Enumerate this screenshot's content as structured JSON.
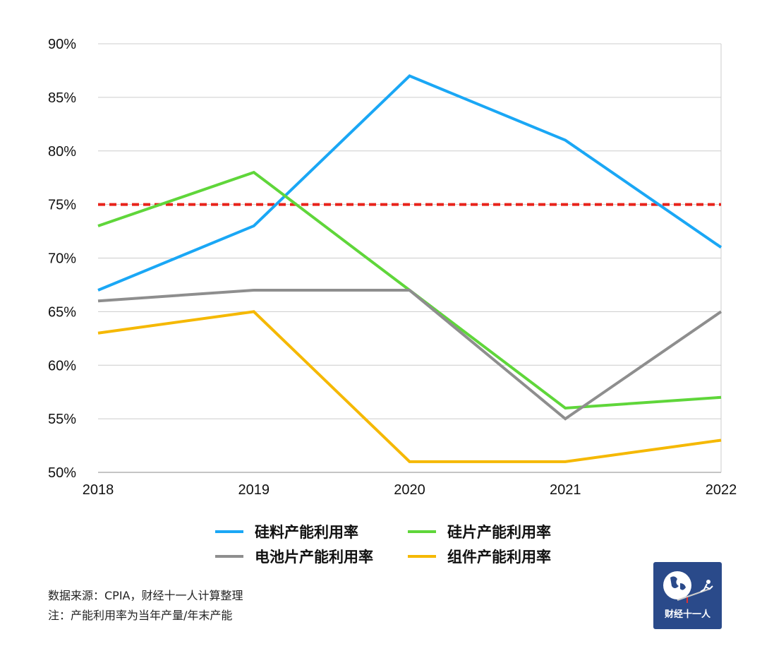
{
  "chart_data": {
    "type": "line",
    "title": "",
    "xlabel": "",
    "ylabel": "",
    "x": [
      "2018",
      "2019",
      "2020",
      "2021",
      "2022"
    ],
    "ylim": [
      50,
      90
    ],
    "yticks": [
      "50%",
      "55%",
      "60%",
      "65%",
      "70%",
      "75%",
      "80%",
      "85%",
      "90%"
    ],
    "ytick_values": [
      50,
      55,
      60,
      65,
      70,
      75,
      80,
      85,
      90
    ],
    "grid": true,
    "legend_position": "bottom",
    "series": [
      {
        "name": "硅料产能利用率",
        "color": "#1aa7f5",
        "values": [
          67,
          73,
          87,
          81,
          71
        ]
      },
      {
        "name": "硅片产能利用率",
        "color": "#5fd63a",
        "values": [
          73,
          78,
          67,
          56,
          57
        ]
      },
      {
        "name": "电池片产能利用率",
        "color": "#8e8e8e",
        "values": [
          66,
          67,
          67,
          55,
          65
        ]
      },
      {
        "name": "组件产能利用率",
        "color": "#f5b800",
        "values": [
          63,
          65,
          51,
          51,
          53
        ]
      }
    ],
    "reference_line": {
      "value": 75,
      "color": "#e8231b",
      "style": "dashed"
    }
  },
  "notes": {
    "source": "数据来源：CPIA，财经十一人计算整理",
    "footnote": "注：产能利用率为当年产量/年末产能"
  },
  "logo": {
    "text": "财经十一人"
  }
}
